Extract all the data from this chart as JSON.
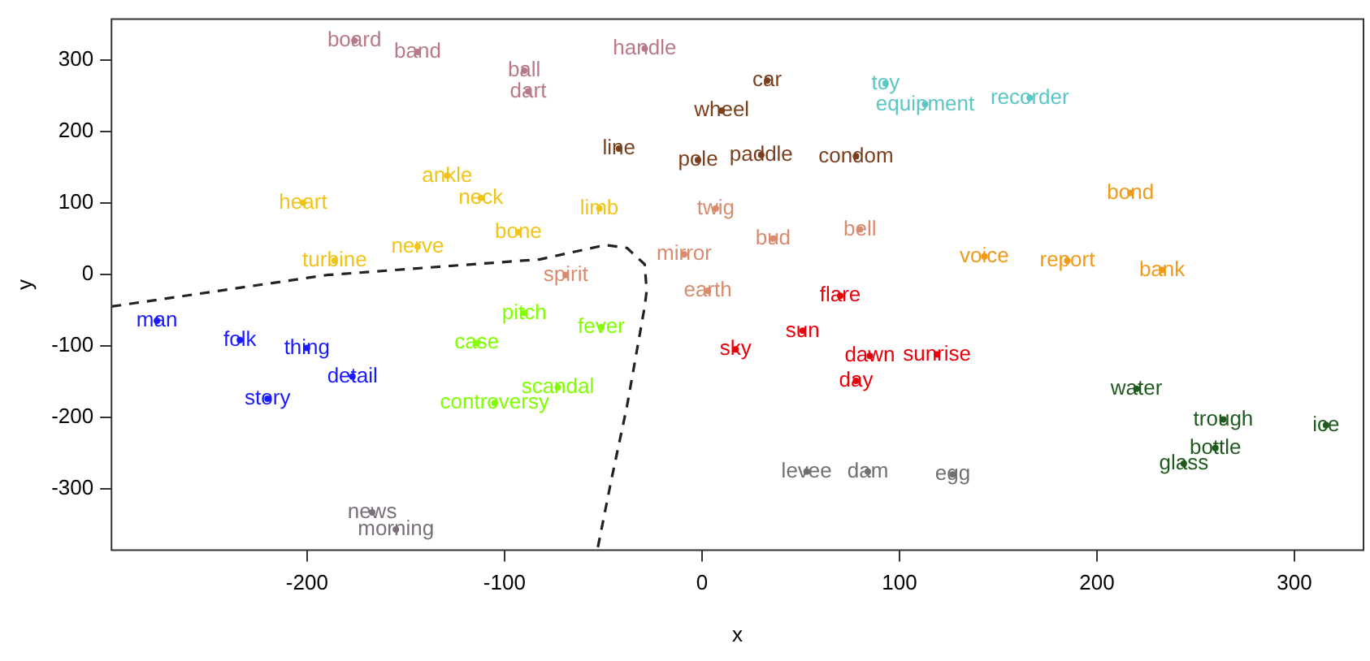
{
  "chart_data": {
    "type": "scatter",
    "xlabel": "x",
    "ylabel": "y",
    "xlim": [
      -299,
      335
    ],
    "ylim": [
      -386,
      357
    ],
    "xticks": [
      -200,
      -100,
      0,
      100,
      200,
      300
    ],
    "yticks": [
      -300,
      -200,
      -100,
      0,
      100,
      200,
      300
    ],
    "marker": "circle",
    "series": [
      {
        "color": "#b87a87",
        "x": [
          -176,
          -144,
          -90,
          -88,
          -29
        ],
        "values": [
          327,
          311,
          285,
          256,
          316
        ],
        "value_labels": [
          "board",
          "band",
          "ball",
          "dart",
          "handle"
        ]
      },
      {
        "color": "#7b3f1e",
        "x": [
          -42,
          33,
          10,
          -2,
          30,
          78
        ],
        "values": [
          176,
          271,
          229,
          160,
          167,
          165
        ],
        "value_labels": [
          "line",
          "car",
          "wheel",
          "pole",
          "paddle",
          "condom"
        ]
      },
      {
        "color": "#f0c419",
        "x": [
          -202,
          -129,
          -112,
          -52,
          -93,
          -144,
          -186
        ],
        "values": [
          100,
          138,
          107,
          92,
          59,
          39,
          19
        ],
        "value_labels": [
          "heart",
          "ankle",
          "neck",
          "limb",
          "bone",
          "nerve",
          "turbine"
        ]
      },
      {
        "color": "#d98b6f",
        "x": [
          7,
          36,
          80,
          -9,
          -69,
          3
        ],
        "values": [
          92,
          50,
          63,
          28,
          -1,
          -23
        ],
        "value_labels": [
          "twig",
          "bud",
          "bell",
          "mirror",
          "spirit",
          "earth"
        ]
      },
      {
        "color": "#5cc6c6",
        "x": [
          93,
          113,
          166
        ],
        "values": [
          267,
          238,
          247
        ],
        "value_labels": [
          "toy",
          "equipment",
          "recorder"
        ]
      },
      {
        "color": "#f09a1a",
        "x": [
          217,
          143,
          185,
          233
        ],
        "values": [
          114,
          25,
          19,
          6
        ],
        "value_labels": [
          "bond",
          "voice",
          "report",
          "bank"
        ]
      },
      {
        "color": "#e8000b",
        "x": [
          70,
          51,
          17,
          85,
          119,
          78
        ],
        "values": [
          -30,
          -79,
          -105,
          -114,
          -112,
          -149
        ],
        "value_labels": [
          "flare",
          "sun",
          "sky",
          "dawn",
          "sunrise",
          "day"
        ]
      },
      {
        "color": "#1a1aff",
        "x": [
          -276,
          -234,
          -200,
          -177,
          -220
        ],
        "values": [
          -65,
          -92,
          -103,
          -143,
          -174
        ],
        "value_labels": [
          "man",
          "folk",
          "thing",
          "detail",
          "story"
        ]
      },
      {
        "color": "#7fff00",
        "x": [
          -90,
          -51,
          -114,
          -73,
          -105
        ],
        "values": [
          -54,
          -74,
          -96,
          -158,
          -180
        ],
        "value_labels": [
          "pitch",
          "fever",
          "case",
          "scandal",
          "controversy"
        ]
      },
      {
        "color": "#7a6f7a",
        "x": [
          -167,
          -155
        ],
        "values": [
          -333,
          -357
        ],
        "value_labels": [
          "news",
          "morning"
        ]
      },
      {
        "color": "#707070",
        "x": [
          53,
          84,
          127
        ],
        "values": [
          -276,
          -276,
          -280
        ],
        "value_labels": [
          "levee",
          "dam",
          "egg"
        ]
      },
      {
        "color": "#1f5a1f",
        "x": [
          220,
          264,
          316,
          260,
          244
        ],
        "values": [
          -160,
          -203,
          -211,
          -243,
          -265
        ],
        "value_labels": [
          "water",
          "trough",
          "ice",
          "bottle",
          "glass"
        ]
      },
      {
        "type": "line",
        "line_style": "dashed",
        "marker": "none",
        "color": "#222222",
        "x": [
          -299,
          -190,
          -82,
          -49,
          -38,
          -29,
          -28,
          -29,
          -38,
          -46,
          -53
        ],
        "values": [
          -45,
          -1,
          21,
          41,
          37,
          14,
          -23,
          -45,
          -185,
          -289,
          -386
        ]
      }
    ]
  }
}
